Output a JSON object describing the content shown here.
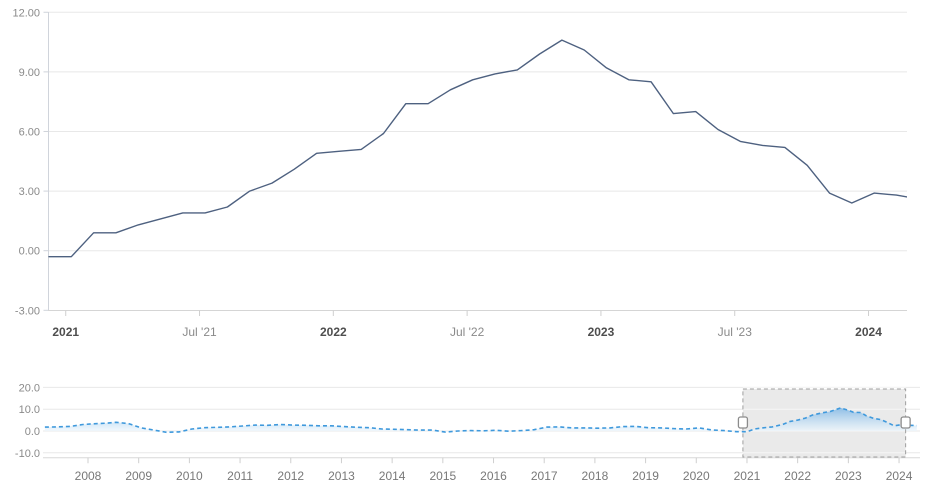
{
  "chart_data": {
    "type": "line",
    "main_chart": {
      "type": "line",
      "line_color": "#4e6180",
      "grid": "horizontal",
      "ylim": [
        -3,
        12.1
      ],
      "y_axis_labels": [
        "12.00",
        "9.00",
        "6.00",
        "3.00",
        "0.00",
        "-3.00"
      ],
      "y_axis_values": [
        12,
        9,
        6,
        3,
        0,
        -3
      ],
      "x_ticks": [
        {
          "label": "2021",
          "bold": true,
          "month_index": 1
        },
        {
          "label": "Jul '21",
          "bold": false,
          "month_index": 7
        },
        {
          "label": "2022",
          "bold": true,
          "month_index": 13
        },
        {
          "label": "Jul '22",
          "bold": false,
          "month_index": 19
        },
        {
          "label": "2023",
          "bold": true,
          "month_index": 25
        },
        {
          "label": "Jul '23",
          "bold": false,
          "month_index": 31
        },
        {
          "label": "2024",
          "bold": true,
          "month_index": 37
        }
      ],
      "categories": [
        "Dec '20",
        "Jan '21",
        "Feb '21",
        "Mar '21",
        "Apr '21",
        "May '21",
        "Jun '21",
        "Jul '21",
        "Aug '21",
        "Sep '21",
        "Oct '21",
        "Nov '21",
        "Dec '21",
        "Jan '22",
        "Feb '22",
        "Mar '22",
        "Apr '22",
        "May '22",
        "Jun '22",
        "Jul '22",
        "Aug '22",
        "Sep '22",
        "Oct '22",
        "Nov '22",
        "Dec '22",
        "Jan '23",
        "Feb '23",
        "Mar '23",
        "Apr '23",
        "May '23",
        "Jun '23",
        "Jul '23",
        "Aug '23",
        "Sep '23",
        "Oct '23",
        "Nov '23",
        "Dec '23",
        "Jan '24",
        "Feb '24",
        "Mar '24"
      ],
      "values": [
        -0.3,
        -0.3,
        0.9,
        0.9,
        1.3,
        1.6,
        1.9,
        1.9,
        2.2,
        3.0,
        3.4,
        4.1,
        4.9,
        5.0,
        5.1,
        5.9,
        7.4,
        7.4,
        8.1,
        8.6,
        8.9,
        9.1,
        9.9,
        10.6,
        10.1,
        9.2,
        8.6,
        8.5,
        6.9,
        7.0,
        6.1,
        5.5,
        5.3,
        5.2,
        4.3,
        2.9,
        2.4,
        2.9,
        2.8,
        2.6
      ]
    },
    "navigator": {
      "type": "area",
      "line_color": "#3f99dc",
      "line_dash": "dashed",
      "fill_gradient_top": "#74b0e2",
      "fill_gradient_bottom": "#eef7fd",
      "ylim": [
        -13,
        23
      ],
      "y_axis_labels": [
        "20.0",
        "10.0",
        "0.0",
        "-10.0"
      ],
      "y_axis_values": [
        20,
        10,
        0,
        -10
      ],
      "x_axis_labels": [
        "2008",
        "2009",
        "2010",
        "2011",
        "2012",
        "2013",
        "2014",
        "2015",
        "2016",
        "2017",
        "2018",
        "2019",
        "2020",
        "2021",
        "2022",
        "2023",
        "2024"
      ],
      "x": [
        2007.15,
        2007.4,
        2007.65,
        2007.9,
        2008.1,
        2008.35,
        2008.55,
        2008.8,
        2009.05,
        2009.3,
        2009.55,
        2009.8,
        2010.05,
        2010.3,
        2010.55,
        2010.8,
        2011.05,
        2011.3,
        2011.55,
        2011.8,
        2012.05,
        2012.3,
        2012.55,
        2012.8,
        2013.05,
        2013.3,
        2013.55,
        2013.8,
        2014.05,
        2014.3,
        2014.55,
        2014.8,
        2015.05,
        2015.3,
        2015.55,
        2015.8,
        2016.05,
        2016.3,
        2016.55,
        2016.8,
        2017.05,
        2017.3,
        2017.55,
        2017.8,
        2018.05,
        2018.3,
        2018.55,
        2018.8,
        2019.05,
        2019.3,
        2019.55,
        2019.8,
        2020.05,
        2020.3,
        2020.55,
        2020.8,
        2021.0,
        2021.15,
        2021.3,
        2021.5,
        2021.7,
        2021.85,
        2022.0,
        2022.15,
        2022.3,
        2022.5,
        2022.65,
        2022.85,
        2023.0,
        2023.1,
        2023.25,
        2023.35,
        2023.5,
        2023.65,
        2023.8,
        2023.9,
        2024.05,
        2024.2,
        2024.35
      ],
      "values": [
        1.8,
        1.9,
        2.1,
        3.0,
        3.3,
        3.6,
        4.0,
        3.4,
        1.4,
        0.4,
        -0.6,
        -0.4,
        0.9,
        1.5,
        1.7,
        1.9,
        2.3,
        2.7,
        2.6,
        3.0,
        2.7,
        2.6,
        2.4,
        2.4,
        2.0,
        1.7,
        1.5,
        0.9,
        0.8,
        0.6,
        0.4,
        0.4,
        -0.5,
        0.0,
        0.2,
        0.1,
        0.3,
        -0.1,
        0.2,
        0.6,
        1.8,
        1.9,
        1.4,
        1.4,
        1.3,
        1.4,
        2.0,
        2.1,
        1.5,
        1.4,
        1.1,
        0.9,
        1.4,
        0.5,
        0.2,
        -0.3,
        -0.3,
        0.9,
        1.4,
        1.9,
        3.0,
        4.4,
        5.0,
        5.9,
        7.4,
        8.4,
        9.0,
        10.6,
        9.5,
        8.6,
        8.5,
        7.0,
        5.8,
        5.2,
        3.6,
        2.4,
        2.9,
        2.6,
        2.5
      ],
      "selection": {
        "from_label": "2021",
        "to_label": "2024",
        "from_x": 2020.92,
        "to_x": 2024.13,
        "fill": "#e9e9e9",
        "border": "#9f9f9f",
        "handle_fill": "#ffffff",
        "handle_border": "#8c8c8c"
      }
    }
  }
}
